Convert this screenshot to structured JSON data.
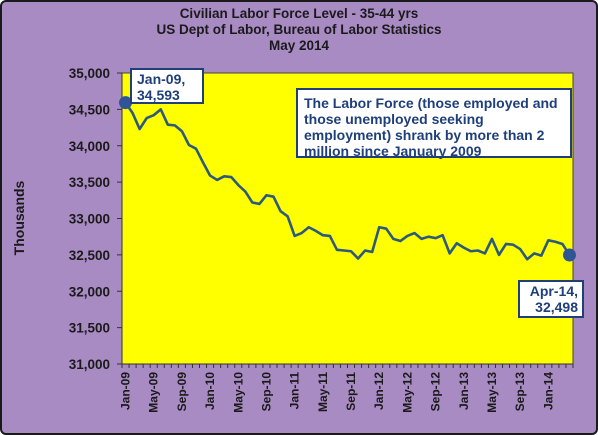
{
  "colors": {
    "background": "#a98bc4",
    "plot_area": "#ffff00",
    "line": "#2e5a7a",
    "marker": "#2f5597",
    "callout_border": "#1f3f7a",
    "callout_text": "#1f3f7a"
  },
  "chart_data": {
    "type": "line",
    "title": "Civilian Labor Force Level - 35-44 yrs",
    "subtitle": "US Dept of Labor, Bureau of Labor Statistics",
    "date_line": "May 2014",
    "ylabel": "Thousands",
    "xlabel": "",
    "ylim": [
      31000,
      35000
    ],
    "y_ticks": [
      "31,000",
      "31,500",
      "32,000",
      "32,500",
      "33,000",
      "33,500",
      "34,000",
      "34,500",
      "35,000"
    ],
    "x_tick_labels": [
      "Jan-09",
      "May-09",
      "Sep-09",
      "Jan-10",
      "May-10",
      "Sep-10",
      "Jan-11",
      "May-11",
      "Sep-11",
      "Jan-12",
      "May-12",
      "Sep-12",
      "Jan-13",
      "May-13",
      "Sep-13",
      "Jan-14"
    ],
    "x_tick_every": 4,
    "grid": false,
    "series": [
      {
        "values": [
          34593,
          34450,
          34230,
          34380,
          34420,
          34500,
          34290,
          34280,
          34200,
          34010,
          33960,
          33770,
          33590,
          33530,
          33580,
          33570,
          33460,
          33370,
          33220,
          33200,
          33320,
          33300,
          33100,
          33030,
          32760,
          32800,
          32880,
          32830,
          32770,
          32760,
          32570,
          32560,
          32550,
          32450,
          32560,
          32540,
          32880,
          32860,
          32720,
          32690,
          32760,
          32800,
          32720,
          32750,
          32730,
          32770,
          32520,
          32660,
          32600,
          32550,
          32560,
          32520,
          32720,
          32500,
          32650,
          32640,
          32580,
          32440,
          32520,
          32490,
          32700,
          32680,
          32650,
          32498
        ]
      }
    ],
    "annotations": {
      "start_line1": "Jan-09,",
      "start_line2": "34,593",
      "end_line1": "Apr-14,",
      "end_line2": "32,498",
      "note": "The Labor Force (those employed and those unemployed seeking employment) shrank by more than 2 million since January 2009"
    }
  }
}
